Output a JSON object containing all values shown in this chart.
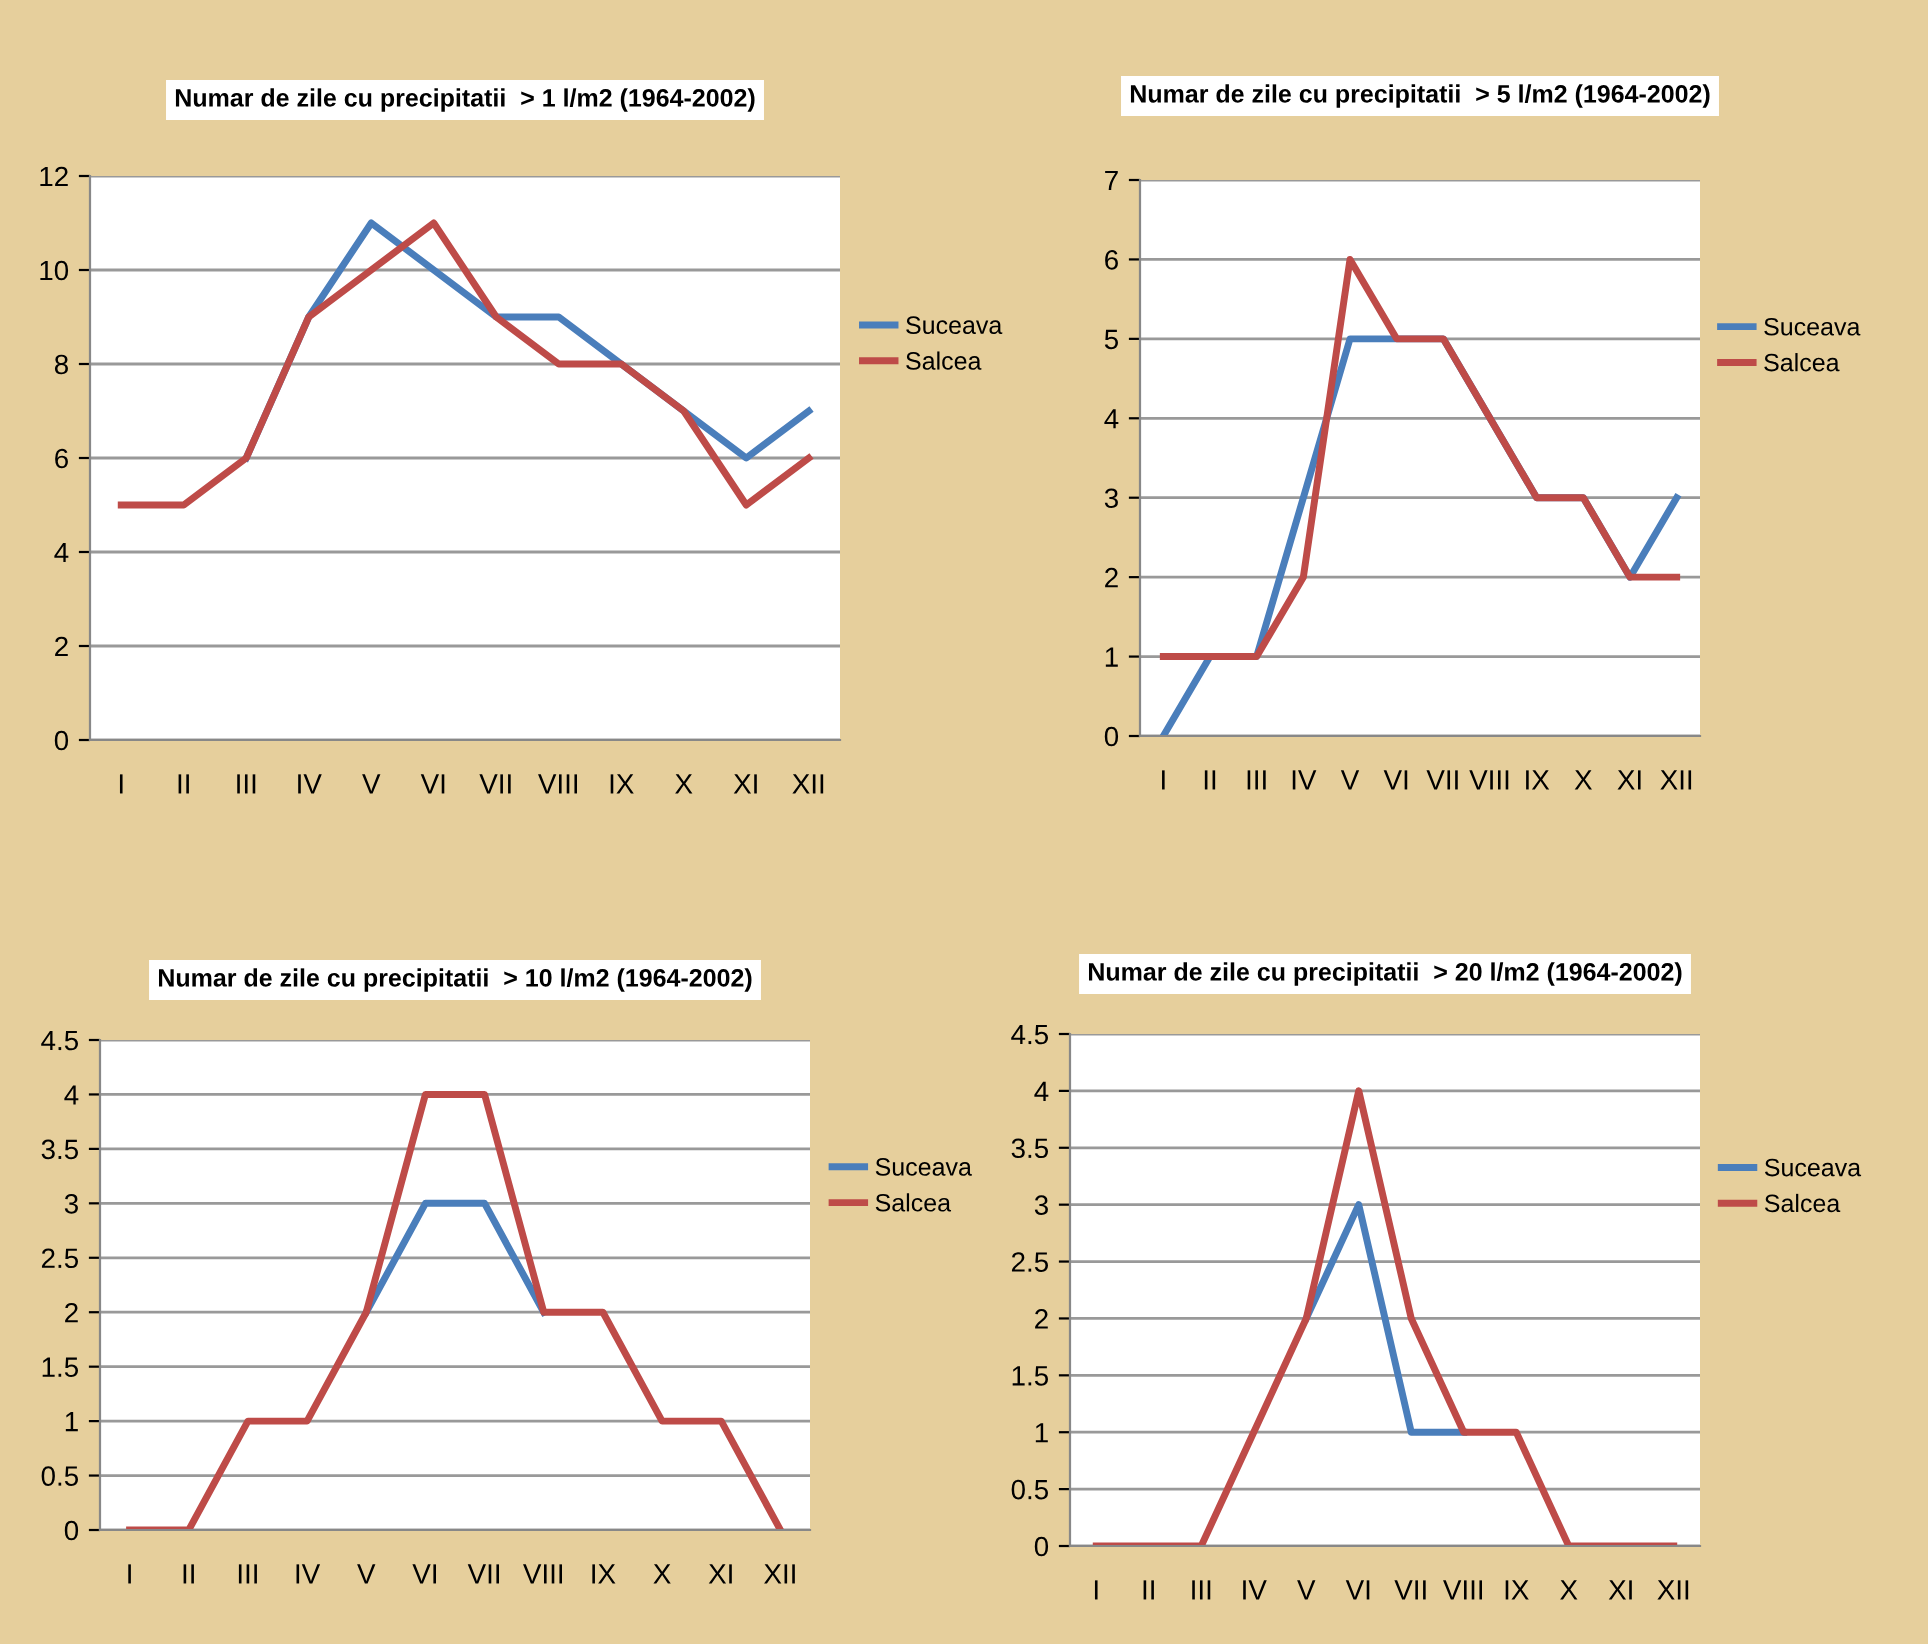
{
  "chart_data": [
    {
      "type": "line",
      "title": "Numar de zile cu precipitatii  > 1 l/m2 (1964-2002)",
      "categories": [
        "I",
        "II",
        "III",
        "IV",
        "V",
        "VI",
        "VII",
        "VIII",
        "IX",
        "X",
        "XI",
        "XII"
      ],
      "series": [
        {
          "name": "Suceava",
          "color": "#4a7ebb",
          "values": [
            null,
            null,
            6,
            9,
            11,
            10,
            9,
            9,
            8,
            7,
            6,
            7
          ]
        },
        {
          "name": "Salcea",
          "color": "#be4b48",
          "values": [
            5,
            5,
            6,
            9,
            10,
            11,
            9,
            8,
            8,
            7,
            5,
            6
          ]
        }
      ],
      "ylim": [
        0,
        12
      ],
      "yticks": [
        0,
        2,
        4,
        6,
        8,
        10,
        12
      ],
      "grid": "y",
      "legend": "right"
    },
    {
      "type": "line",
      "title": "Numar de zile cu precipitatii  > 5 l/m2 (1964-2002)",
      "categories": [
        "I",
        "II",
        "III",
        "IV",
        "V",
        "VI",
        "VII",
        "VIII",
        "IX",
        "X",
        "XI",
        "XII"
      ],
      "series": [
        {
          "name": "Suceava",
          "color": "#4a7ebb",
          "values": [
            0,
            1,
            1,
            3,
            5,
            5,
            5,
            4,
            3,
            3,
            2,
            3
          ]
        },
        {
          "name": "Salcea",
          "color": "#be4b48",
          "values": [
            1,
            1,
            1,
            2,
            6,
            5,
            5,
            4,
            3,
            3,
            2,
            2
          ]
        }
      ],
      "ylim": [
        0,
        7
      ],
      "yticks": [
        0,
        1,
        2,
        3,
        4,
        5,
        6,
        7
      ],
      "grid": "y",
      "legend": "right"
    },
    {
      "type": "line",
      "title": "Numar de zile cu precipitatii  > 10 l/m2 (1964-2002)",
      "categories": [
        "I",
        "II",
        "III",
        "IV",
        "V",
        "VI",
        "VII",
        "VIII",
        "IX",
        "X",
        "XI",
        "XII"
      ],
      "series": [
        {
          "name": "Suceava",
          "color": "#4a7ebb",
          "values": [
            null,
            null,
            null,
            null,
            2,
            3,
            3,
            2,
            null,
            null,
            null,
            null
          ]
        },
        {
          "name": "Salcea",
          "color": "#be4b48",
          "values": [
            0,
            0,
            1,
            1,
            2,
            4,
            4,
            2,
            2,
            1,
            1,
            0
          ]
        }
      ],
      "ylim": [
        0,
        4.5
      ],
      "yticks": [
        0,
        0.5,
        1,
        1.5,
        2,
        2.5,
        3,
        3.5,
        4,
        4.5
      ],
      "grid": "y",
      "legend": "right"
    },
    {
      "type": "line",
      "title": "Numar de zile cu precipitatii  > 20 l/m2 (1964-2002)",
      "categories": [
        "I",
        "II",
        "III",
        "IV",
        "V",
        "VI",
        "VII",
        "VIII",
        "IX",
        "X",
        "XI",
        "XII"
      ],
      "series": [
        {
          "name": "Suceava",
          "color": "#4a7ebb",
          "values": [
            null,
            null,
            null,
            null,
            2,
            3,
            1,
            1,
            null,
            null,
            null,
            null
          ]
        },
        {
          "name": "Salcea",
          "color": "#be4b48",
          "values": [
            0,
            0,
            0,
            1,
            2,
            4,
            2,
            1,
            1,
            0,
            0,
            0
          ]
        }
      ],
      "ylim": [
        0,
        4.5
      ],
      "yticks": [
        0,
        0.5,
        1,
        1.5,
        2,
        2.5,
        3,
        3.5,
        4,
        4.5
      ],
      "grid": "y",
      "legend": "right"
    }
  ]
}
